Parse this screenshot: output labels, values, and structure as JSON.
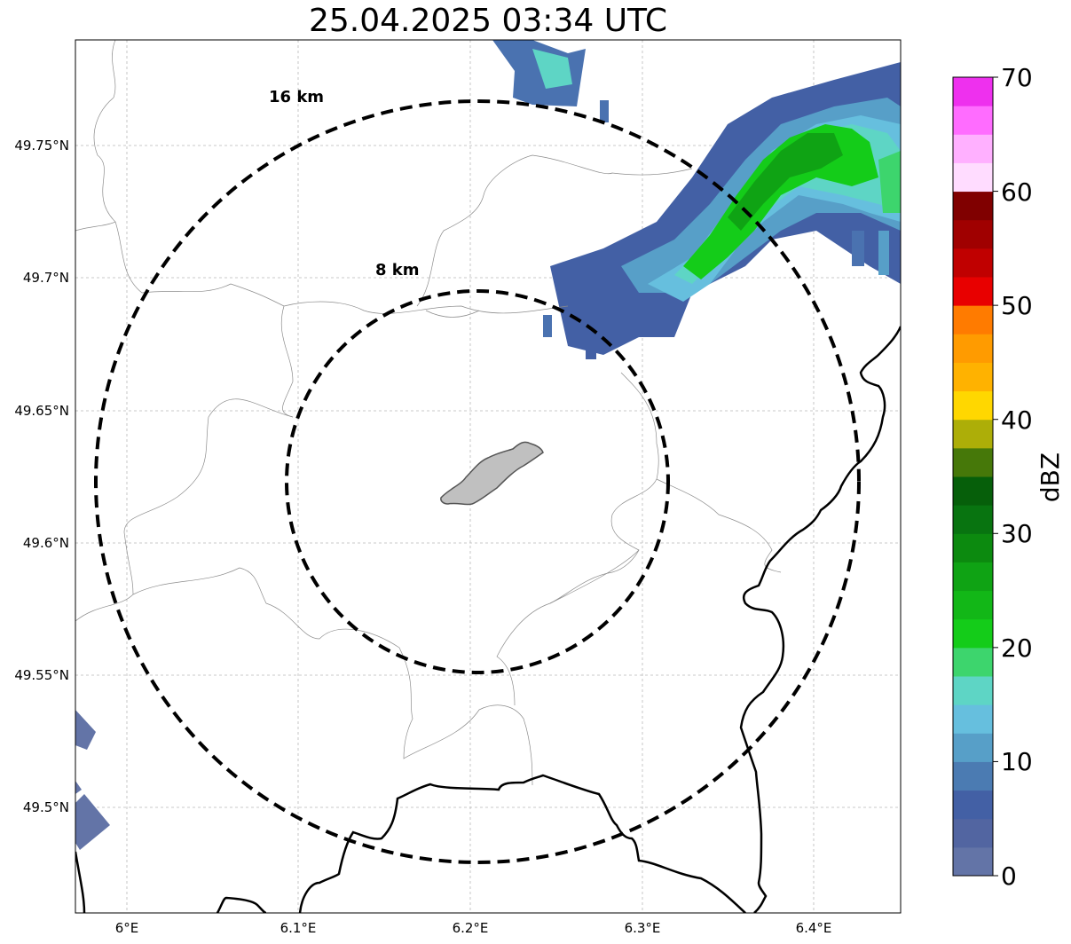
{
  "title": "25.04.2025 03:34 UTC",
  "map": {
    "lon_labels": [
      "6°E",
      "6.1°E",
      "6.2°E",
      "6.3°E",
      "6.4°E"
    ],
    "lat_labels": [
      "49.75°N",
      "49.7°N",
      "49.65°N",
      "49.6°N",
      "49.55°N",
      "49.5°N"
    ],
    "extent": {
      "lon_min": 5.97,
      "lon_max": 6.45,
      "lat_min": 49.46,
      "lat_max": 49.79
    },
    "center": {
      "lon": 6.2,
      "lat": 49.623
    },
    "rings": [
      {
        "label": "8 km",
        "radius_km": 8
      },
      {
        "label": "16 km",
        "radius_km": 16
      }
    ]
  },
  "colorbar": {
    "label": "dBZ",
    "ticks": [
      "0",
      "10",
      "20",
      "30",
      "40",
      "50",
      "60",
      "70"
    ],
    "range": [
      0,
      70
    ],
    "colors": [
      "#6374a7",
      "#5265a1",
      "#4360a5",
      "#4b7bb2",
      "#579fc8",
      "#66bfde",
      "#5ed5c5",
      "#3dd56d",
      "#14cc19",
      "#12b717",
      "#0fa314",
      "#0c8a0f",
      "#087410",
      "#065f0a",
      "#467809",
      "#adae08",
      "#ffd700",
      "#ffb200",
      "#ff9b00",
      "#ff7b00",
      "#e80000",
      "#c00000",
      "#a00000",
      "#800000",
      "#ffdcff",
      "#ffb0ff",
      "#ff6cff",
      "#ee30ee"
    ]
  }
}
